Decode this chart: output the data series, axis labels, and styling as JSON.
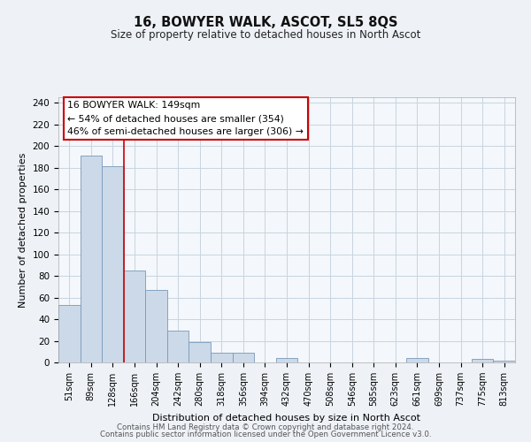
{
  "title": "16, BOWYER WALK, ASCOT, SL5 8QS",
  "subtitle": "Size of property relative to detached houses in North Ascot",
  "xlabel": "Distribution of detached houses by size in North Ascot",
  "ylabel": "Number of detached properties",
  "bar_color": "#ccd9e8",
  "bar_edge_color": "#7799bb",
  "categories": [
    "51sqm",
    "89sqm",
    "128sqm",
    "166sqm",
    "204sqm",
    "242sqm",
    "280sqm",
    "318sqm",
    "356sqm",
    "394sqm",
    "432sqm",
    "470sqm",
    "508sqm",
    "546sqm",
    "585sqm",
    "623sqm",
    "661sqm",
    "699sqm",
    "737sqm",
    "775sqm",
    "813sqm"
  ],
  "values": [
    53,
    191,
    181,
    85,
    67,
    29,
    19,
    9,
    9,
    0,
    4,
    0,
    0,
    0,
    0,
    0,
    4,
    0,
    0,
    3,
    2
  ],
  "ylim": [
    0,
    245
  ],
  "yticks": [
    0,
    20,
    40,
    60,
    80,
    100,
    120,
    140,
    160,
    180,
    200,
    220,
    240
  ],
  "red_line_x": 2.5,
  "annotation_title": "16 BOWYER WALK: 149sqm",
  "annotation_line1": "← 54% of detached houses are smaller (354)",
  "annotation_line2": "46% of semi-detached houses are larger (306) →",
  "footer1": "Contains HM Land Registry data © Crown copyright and database right 2024.",
  "footer2": "Contains public sector information licensed under the Open Government Licence v3.0.",
  "bg_color": "#eef2f7",
  "plot_bg_color": "#f4f7fb",
  "grid_color": "#c8d4e0"
}
